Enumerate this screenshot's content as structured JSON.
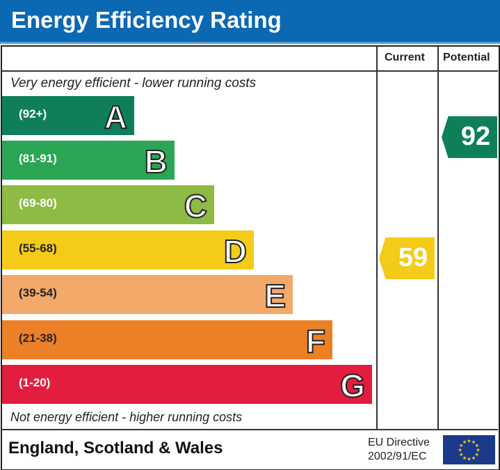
{
  "header": {
    "title": "Energy Efficiency Rating"
  },
  "columns": {
    "current": "Current",
    "potential": "Potential"
  },
  "notes": {
    "top": "Very energy efficient - lower running costs",
    "bottom": "Not energy efficient - higher running costs"
  },
  "chart_data": {
    "type": "bar",
    "categories": [
      "A",
      "B",
      "C",
      "D",
      "E",
      "F",
      "G"
    ],
    "ranges": [
      "(92+)",
      "(81-91)",
      "(69-80)",
      "(55-68)",
      "(39-54)",
      "(21-38)",
      "(1-20)"
    ],
    "colors": [
      "#0f7f5b",
      "#2aa654",
      "#8dbb45",
      "#f4cb18",
      "#f2a96a",
      "#ec8026",
      "#e31d3d"
    ],
    "current": {
      "label": "Current",
      "value": "59",
      "band": "D",
      "color": "#f4cb18"
    },
    "potential": {
      "label": "Potential",
      "value": "92",
      "band": "A",
      "color": "#0f7f5b"
    }
  },
  "footer": {
    "region": "England, Scotland & Wales",
    "directive_line1": "EU Directive",
    "directive_line2": "2002/91/EC"
  }
}
